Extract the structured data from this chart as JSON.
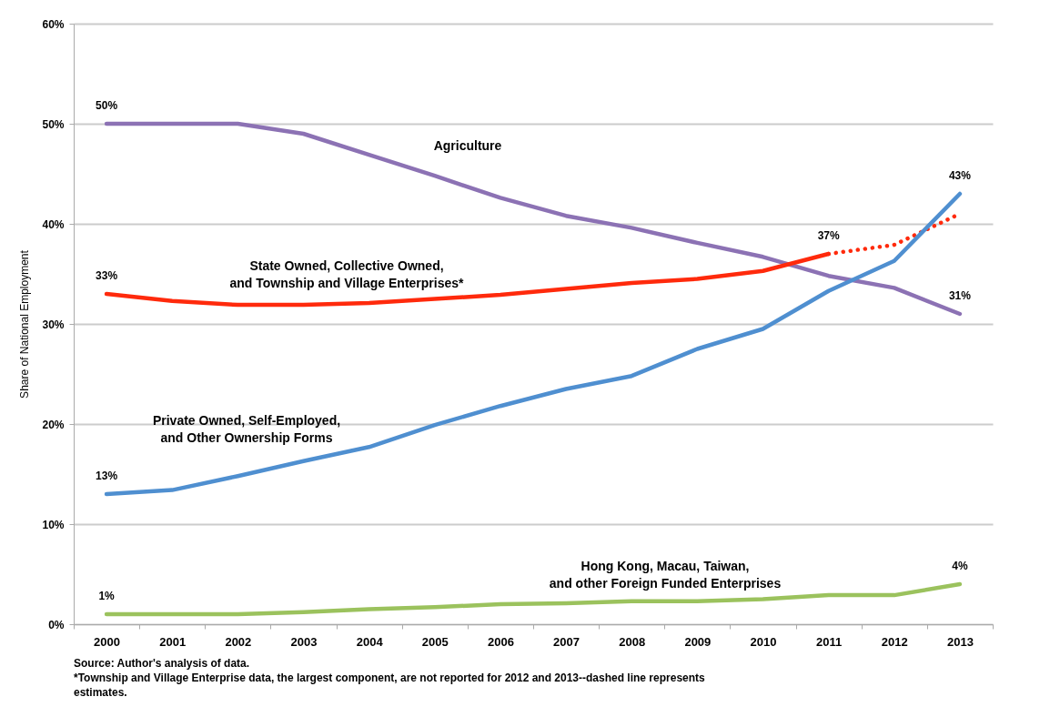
{
  "chart_data": {
    "type": "line",
    "ylabel": "Share of National Employment",
    "categories": [
      "2000",
      "2001",
      "2002",
      "2003",
      "2004",
      "2005",
      "2006",
      "2007",
      "2008",
      "2009",
      "2010",
      "2011",
      "2012",
      "2013"
    ],
    "ylim": [
      0,
      60
    ],
    "yticks": [
      {
        "value": 0,
        "label": "0%"
      },
      {
        "value": 10,
        "label": "10%"
      },
      {
        "value": 20,
        "label": "20%"
      },
      {
        "value": 30,
        "label": "30%"
      },
      {
        "value": 40,
        "label": "40%"
      },
      {
        "value": 50,
        "label": "50%"
      },
      {
        "value": 60,
        "label": "60%"
      }
    ],
    "grid": "y",
    "marker": "none",
    "line_style": "solid",
    "series": [
      {
        "name": "Agriculture",
        "color": "#8c72b4",
        "values": [
          50,
          50,
          50,
          49,
          46.9,
          44.8,
          42.6,
          40.8,
          39.6,
          38.1,
          36.7,
          34.8,
          33.6,
          31
        ],
        "value_labels": [
          "50%",
          null,
          null,
          null,
          null,
          null,
          null,
          null,
          null,
          null,
          null,
          null,
          null,
          "31%"
        ]
      },
      {
        "name": "State Owned, Collective Owned, and Township and Village Enterprises*",
        "color": "#ff2a0c",
        "values": [
          33,
          32.3,
          31.9,
          31.9,
          32.1,
          32.5,
          32.9,
          33.5,
          34.1,
          34.5,
          35.3,
          37,
          null,
          null
        ],
        "value_labels": [
          "33%",
          null,
          null,
          null,
          null,
          null,
          null,
          null,
          null,
          null,
          null,
          "37%",
          null,
          null
        ]
      },
      {
        "color": "#ff2a0c",
        "line_style": "dotted",
        "values": [
          null,
          null,
          null,
          null,
          null,
          null,
          null,
          null,
          null,
          null,
          null,
          37,
          37.9,
          41
        ]
      },
      {
        "name": "Private Owned, Self-Employed, and Other Ownership Forms",
        "color": "#4f8fd0",
        "values": [
          13,
          13.4,
          14.8,
          16.3,
          17.7,
          19.9,
          21.8,
          23.5,
          24.8,
          27.5,
          29.5,
          33.3,
          36.3,
          43
        ],
        "value_labels": [
          "13%",
          null,
          null,
          null,
          null,
          null,
          null,
          null,
          null,
          null,
          null,
          null,
          null,
          "43%"
        ]
      },
      {
        "name": "Hong Kong, Macau, Taiwan, and other Foreign Funded Enterprises",
        "color": "#9bc25d",
        "values": [
          1,
          1,
          1,
          1.2,
          1.5,
          1.7,
          2,
          2.1,
          2.3,
          2.3,
          2.5,
          2.9,
          2.9,
          4
        ],
        "value_labels": [
          "1%",
          null,
          null,
          null,
          null,
          null,
          null,
          null,
          null,
          null,
          null,
          null,
          null,
          "4%"
        ]
      }
    ],
    "annotations": [
      "Source: Author's analysis of data.",
      "*Township and Village Enterprise data, the largest component, are not reported for 2012 and 2013--dashed line represents estimates."
    ]
  }
}
